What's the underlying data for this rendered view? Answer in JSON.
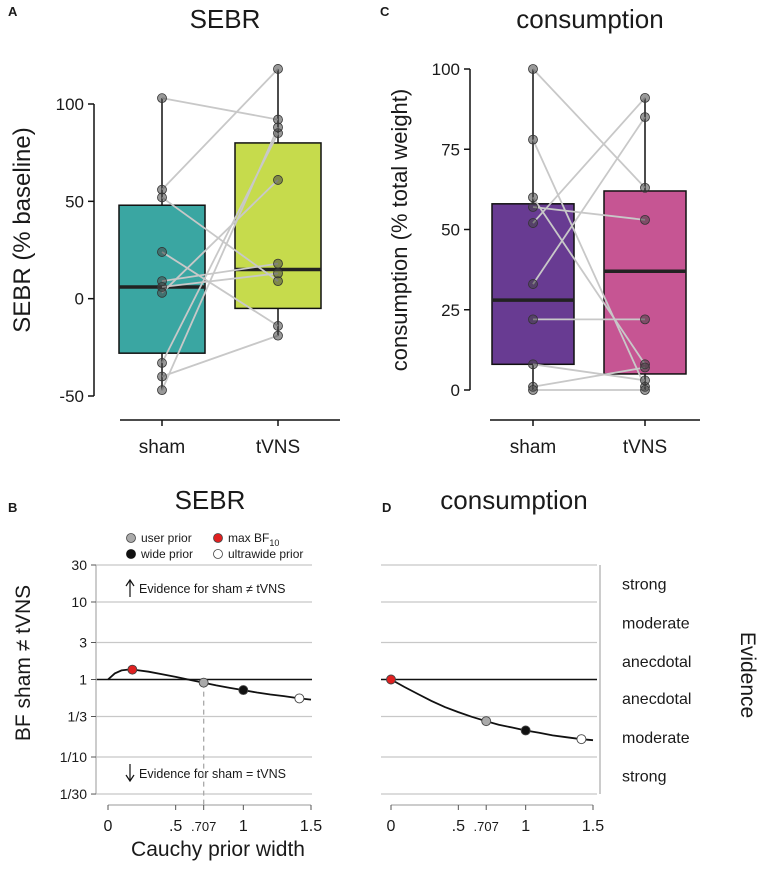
{
  "panels": {
    "A": {
      "label": "A",
      "title": "SEBR",
      "ylabel": "SEBR (% baseline)"
    },
    "B": {
      "label": "B",
      "title": "SEBR",
      "ylabel": "BF sham ≠ tVNS",
      "xlabel": "Cauchy prior width"
    },
    "C": {
      "label": "C",
      "title": "consumption",
      "ylabel": "consumption (% total weight)"
    },
    "D": {
      "label": "D",
      "title": "consumption",
      "right_axis_title": "Evidence"
    }
  },
  "legend": {
    "user_prior": "user prior",
    "max_bf_prefix": "max BF",
    "max_bf_sub": "10",
    "wide_prior": "wide prior",
    "ultrawide_prior": "ultrawide prior"
  },
  "annotations": {
    "evidence_for_diff": "Evidence for sham ≠ tVNS",
    "evidence_for_equal": "Evidence for sham = tVNS"
  },
  "evidence_labels": [
    "strong",
    "moderate",
    "anecdotal",
    "anecdotal",
    "moderate",
    "strong"
  ],
  "colors": {
    "sham_A": "#3aa6a2",
    "tvns_A": "#c6db4c",
    "sham_C": "#683b92",
    "tvns_C": "#c65593",
    "user_prior": "#aaaaaa",
    "max_bf": "#e02020",
    "wide_prior": "#111111",
    "ultrawide_prior": "#ffffff",
    "paired_lines": "#c8c8c8",
    "gridlines": "#c8c8c8"
  },
  "chart_data": [
    {
      "panel": "A",
      "type": "box",
      "title": "SEBR",
      "ylabel": "SEBR (% baseline)",
      "categories": [
        "sham",
        "tVNS"
      ],
      "yticks": [
        -50,
        0,
        50,
        100
      ],
      "ylim": [
        -55,
        125
      ],
      "boxes": [
        {
          "name": "sham",
          "q1": -28,
          "median": 6,
          "q3": 48,
          "whisker_low": -47,
          "whisker_high": 103
        },
        {
          "name": "tVNS",
          "q1": -5,
          "median": 15,
          "q3": 80,
          "whisker_low": -19,
          "whisker_high": 118
        }
      ],
      "paired_points": [
        [
          103,
          92
        ],
        [
          56,
          118
        ],
        [
          52,
          9
        ],
        [
          24,
          -14
        ],
        [
          9,
          18
        ],
        [
          6,
          13
        ],
        [
          3,
          61
        ],
        [
          -33,
          85
        ],
        [
          -40,
          -19
        ],
        [
          -47,
          88
        ]
      ]
    },
    {
      "panel": "C",
      "type": "box",
      "title": "consumption",
      "ylabel": "consumption (% total weight)",
      "categories": [
        "sham",
        "tVNS"
      ],
      "yticks": [
        0,
        25,
        50,
        75,
        100
      ],
      "ylim": [
        -5,
        105
      ],
      "boxes": [
        {
          "name": "sham",
          "q1": 8,
          "median": 28,
          "q3": 58,
          "whisker_low": 0,
          "whisker_high": 100
        },
        {
          "name": "tVNS",
          "q1": 5,
          "median": 37,
          "q3": 62,
          "whisker_low": 0,
          "whisker_high": 91
        }
      ],
      "paired_points": [
        [
          100,
          63
        ],
        [
          78,
          1
        ],
        [
          60,
          8
        ],
        [
          57,
          53
        ],
        [
          52,
          91
        ],
        [
          33,
          85
        ],
        [
          22,
          22
        ],
        [
          8,
          3
        ],
        [
          1,
          7
        ],
        [
          0,
          0
        ]
      ]
    },
    {
      "panel": "B",
      "type": "line",
      "title": "SEBR",
      "xlabel": "Cauchy prior width",
      "ylabel": "BF sham ≠ tVNS",
      "x_ticks": [
        0,
        0.5,
        0.707,
        1,
        1.5
      ],
      "x_tick_labels": [
        "0",
        ".5",
        ".707",
        "1",
        "1.5"
      ],
      "x_range": [
        0,
        1.5
      ],
      "y_ticks": [
        30,
        10,
        3,
        1,
        0.3333,
        0.1,
        0.0333
      ],
      "y_tick_labels": [
        "30",
        "10",
        "3",
        "1",
        "1/3",
        "1/10",
        "1/30"
      ],
      "y_scale": "log",
      "curve": {
        "x": [
          0,
          0.05,
          0.1,
          0.15,
          0.2,
          0.3,
          0.4,
          0.5,
          0.6,
          0.707,
          0.8,
          0.9,
          1.0,
          1.1,
          1.2,
          1.3,
          1.414,
          1.5
        ],
        "y": [
          1.0,
          1.2,
          1.31,
          1.34,
          1.33,
          1.26,
          1.17,
          1.08,
          0.99,
          0.91,
          0.84,
          0.78,
          0.73,
          0.68,
          0.64,
          0.61,
          0.57,
          0.55
        ]
      },
      "points": [
        {
          "name": "max BF10",
          "x": 0.18,
          "y": 1.34
        },
        {
          "name": "user prior",
          "x": 0.707,
          "y": 0.91
        },
        {
          "name": "wide prior",
          "x": 1.0,
          "y": 0.73
        },
        {
          "name": "ultrawide prior",
          "x": 1.414,
          "y": 0.57
        }
      ]
    },
    {
      "panel": "D",
      "type": "line",
      "title": "consumption",
      "x_ticks": [
        0,
        0.5,
        0.707,
        1,
        1.5
      ],
      "x_tick_labels": [
        "0",
        ".5",
        ".707",
        "1",
        "1.5"
      ],
      "x_range": [
        0,
        1.5
      ],
      "y_scale": "log",
      "curve": {
        "x": [
          0,
          0.1,
          0.2,
          0.3,
          0.4,
          0.5,
          0.6,
          0.707,
          0.8,
          0.9,
          1.0,
          1.1,
          1.2,
          1.3,
          1.414,
          1.5
        ],
        "y": [
          1.0,
          0.8,
          0.65,
          0.53,
          0.44,
          0.38,
          0.33,
          0.29,
          0.26,
          0.24,
          0.22,
          0.205,
          0.19,
          0.18,
          0.17,
          0.165
        ]
      },
      "points": [
        {
          "name": "max BF10",
          "x": 0.0,
          "y": 1.0
        },
        {
          "name": "user prior",
          "x": 0.707,
          "y": 0.29
        },
        {
          "name": "wide prior",
          "x": 1.0,
          "y": 0.22
        },
        {
          "name": "ultrawide prior",
          "x": 1.414,
          "y": 0.17
        }
      ]
    }
  ]
}
